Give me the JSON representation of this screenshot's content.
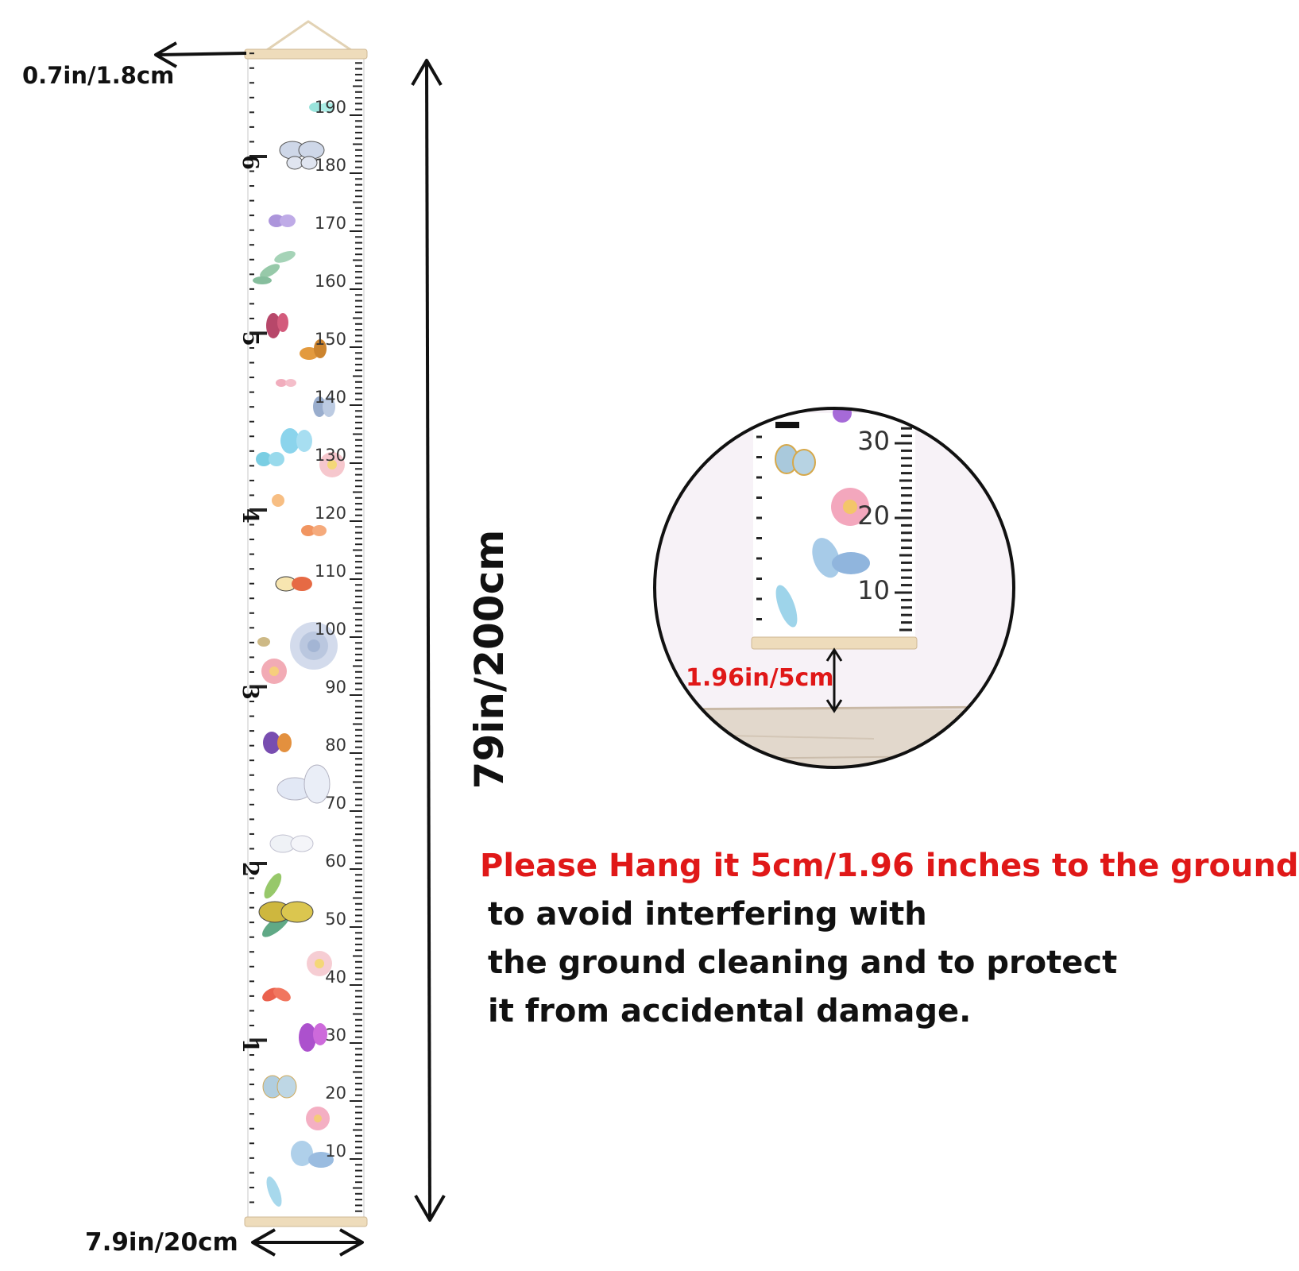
{
  "dimensions": {
    "top_rod_label": "0.7in/1.8cm",
    "width_label": "7.9in/20cm",
    "height_label": "79in/200cm",
    "ground_gap_label": "1.96in/5cm"
  },
  "ruler": {
    "cm_labels": [
      "190",
      "180",
      "170",
      "160",
      "150",
      "140",
      "130",
      "120",
      "110",
      "100",
      "90",
      "80",
      "70",
      "60",
      "50",
      "40",
      "30",
      "20",
      "10"
    ],
    "foot_labels": [
      "6",
      "5",
      "4",
      "3",
      "2",
      "1"
    ]
  },
  "zoom": {
    "cm_labels": [
      "30",
      "20",
      "10"
    ]
  },
  "notice": {
    "headline": "Please Hang it 5cm/1.96 inches to the ground",
    "lines": [
      "to avoid interfering with",
      "the ground cleaning and to protect",
      "it from accidental damage."
    ]
  },
  "colors": {
    "accent_red": "#e01818",
    "wood": "#eedcbb"
  }
}
